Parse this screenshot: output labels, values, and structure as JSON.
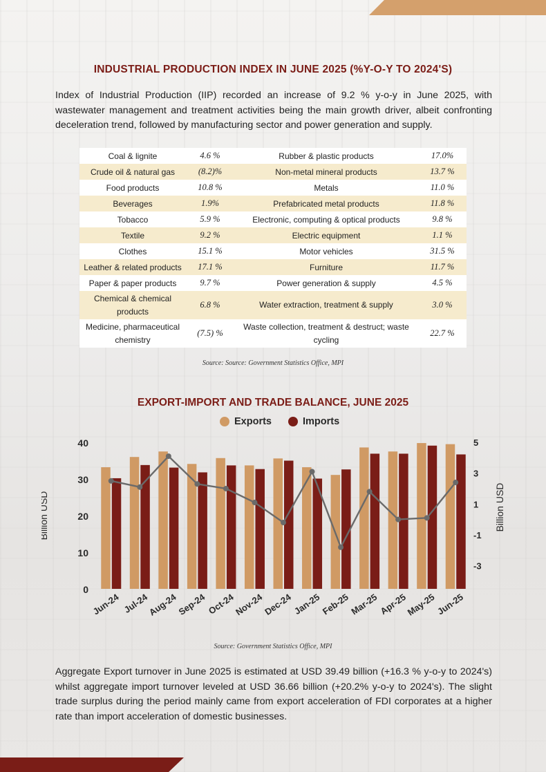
{
  "title": "INDUSTRIAL PRODUCTION INDEX IN JUNE 2025 (%Y-O-Y TO 2024'S)",
  "intro": "Index of Industrial Production (IIP) recorded an increase of 9.2 % y-o-y in June 2025, with wastewater management and treatment activities being the main growth driver, albeit confronting deceleration trend, followed by manufacturing sector and power generation and supply.",
  "iip_table": [
    {
      "left_name": "Coal & lignite",
      "left_value": "4.6 %",
      "right_name": "Rubber & plastic products",
      "right_value": "17.0%"
    },
    {
      "left_name": "Crude oil & natural gas",
      "left_value": "(8.2)%",
      "right_name": "Non-metal mineral products",
      "right_value": "13.7 %"
    },
    {
      "left_name": "Food products",
      "left_value": "10.8 %",
      "right_name": "Metals",
      "right_value": "11.0 %"
    },
    {
      "left_name": "Beverages",
      "left_value": "1.9%",
      "right_name": "Prefabricated metal products",
      "right_value": "11.8 %"
    },
    {
      "left_name": "Tobacco",
      "left_value": "5.9 %",
      "right_name": "Electronic, computing & optical products",
      "right_value": "9.8 %"
    },
    {
      "left_name": "Textile",
      "left_value": "9.2 %",
      "right_name": "Electric equipment",
      "right_value": "1.1 %"
    },
    {
      "left_name": "Clothes",
      "left_value": "15.1 %",
      "right_name": "Motor vehicles",
      "right_value": "31.5 %"
    },
    {
      "left_name": "Leather & related products",
      "left_value": "17.1 %",
      "right_name": "Furniture",
      "right_value": "11.7 %"
    },
    {
      "left_name": "Paper & paper products",
      "left_value": "9.7 %",
      "right_name": "Power generation & supply",
      "right_value": "4.5 %"
    },
    {
      "left_name": "Chemical & chemical products",
      "left_value": "6.8 %",
      "right_name": "Water extraction, treatment & supply",
      "right_value": "3.0 %"
    },
    {
      "left_name": "Medicine, pharmaceutical chemistry",
      "left_value": "(7.5) %",
      "right_name": "Waste collection, treatment & destruct; waste cycling",
      "right_value": "22.7 %"
    }
  ],
  "source_1": "Source: Source: Government Statistics Office, MPI",
  "chart_title": "EXPORT-IMPORT AND TRADE BALANCE, JUNE 2025",
  "source_2": "Source: Government Statistics Office, MPI",
  "closing": "Aggregate Export turnover in June 2025 is estimated at USD 39.49 billion (+16.3 % y-o-y to 2024's) whilst aggregate import turnover leveled at USD 36.66 billion (+20.2% y-o-y to 2024's). The slight trade surplus during the period mainly came from export acceleration of FDI corporates at a higher rate than import acceleration of domestic businesses.",
  "colors": {
    "exports": "#d09a64",
    "imports": "#7a1d17",
    "balance_line": "#6a6a6a",
    "title": "#7b1d17",
    "row_alt": "#f6ebcd"
  },
  "chart_data": {
    "type": "bar",
    "categories": [
      "Jun-24",
      "Jul-24",
      "Aug-24",
      "Sep-24",
      "Oct-24",
      "Nov-24",
      "Dec-24",
      "Jan-25",
      "Feb-25",
      "Mar-25",
      "Apr-25",
      "May-25",
      "Jun-25"
    ],
    "series": [
      {
        "name": "Exports",
        "values": [
          33.2,
          36.0,
          37.5,
          34.1,
          35.7,
          33.7,
          35.6,
          33.2,
          31.1,
          38.6,
          37.5,
          39.8,
          39.5
        ]
      },
      {
        "name": "Imports",
        "values": [
          30.2,
          33.8,
          33.1,
          31.8,
          33.7,
          32.7,
          35.0,
          30.1,
          32.6,
          36.9,
          36.9,
          39.1,
          36.7
        ]
      },
      {
        "name": "",
        "axis": "right",
        "type": "line",
        "values": [
          2.5,
          2.1,
          4.1,
          2.3,
          2.0,
          1.1,
          -0.2,
          3.1,
          -1.8,
          1.8,
          0.0,
          0.1,
          2.4
        ]
      }
    ],
    "ylabel": "Billion USD",
    "y2label": "Billion USD",
    "ylim": [
      0,
      40
    ],
    "yticks": [
      0,
      10,
      20,
      30,
      40
    ],
    "y2lim": [
      -4.5,
      5
    ],
    "y2ticks": [
      5,
      3,
      1,
      -1,
      -3
    ],
    "legend": "top"
  }
}
